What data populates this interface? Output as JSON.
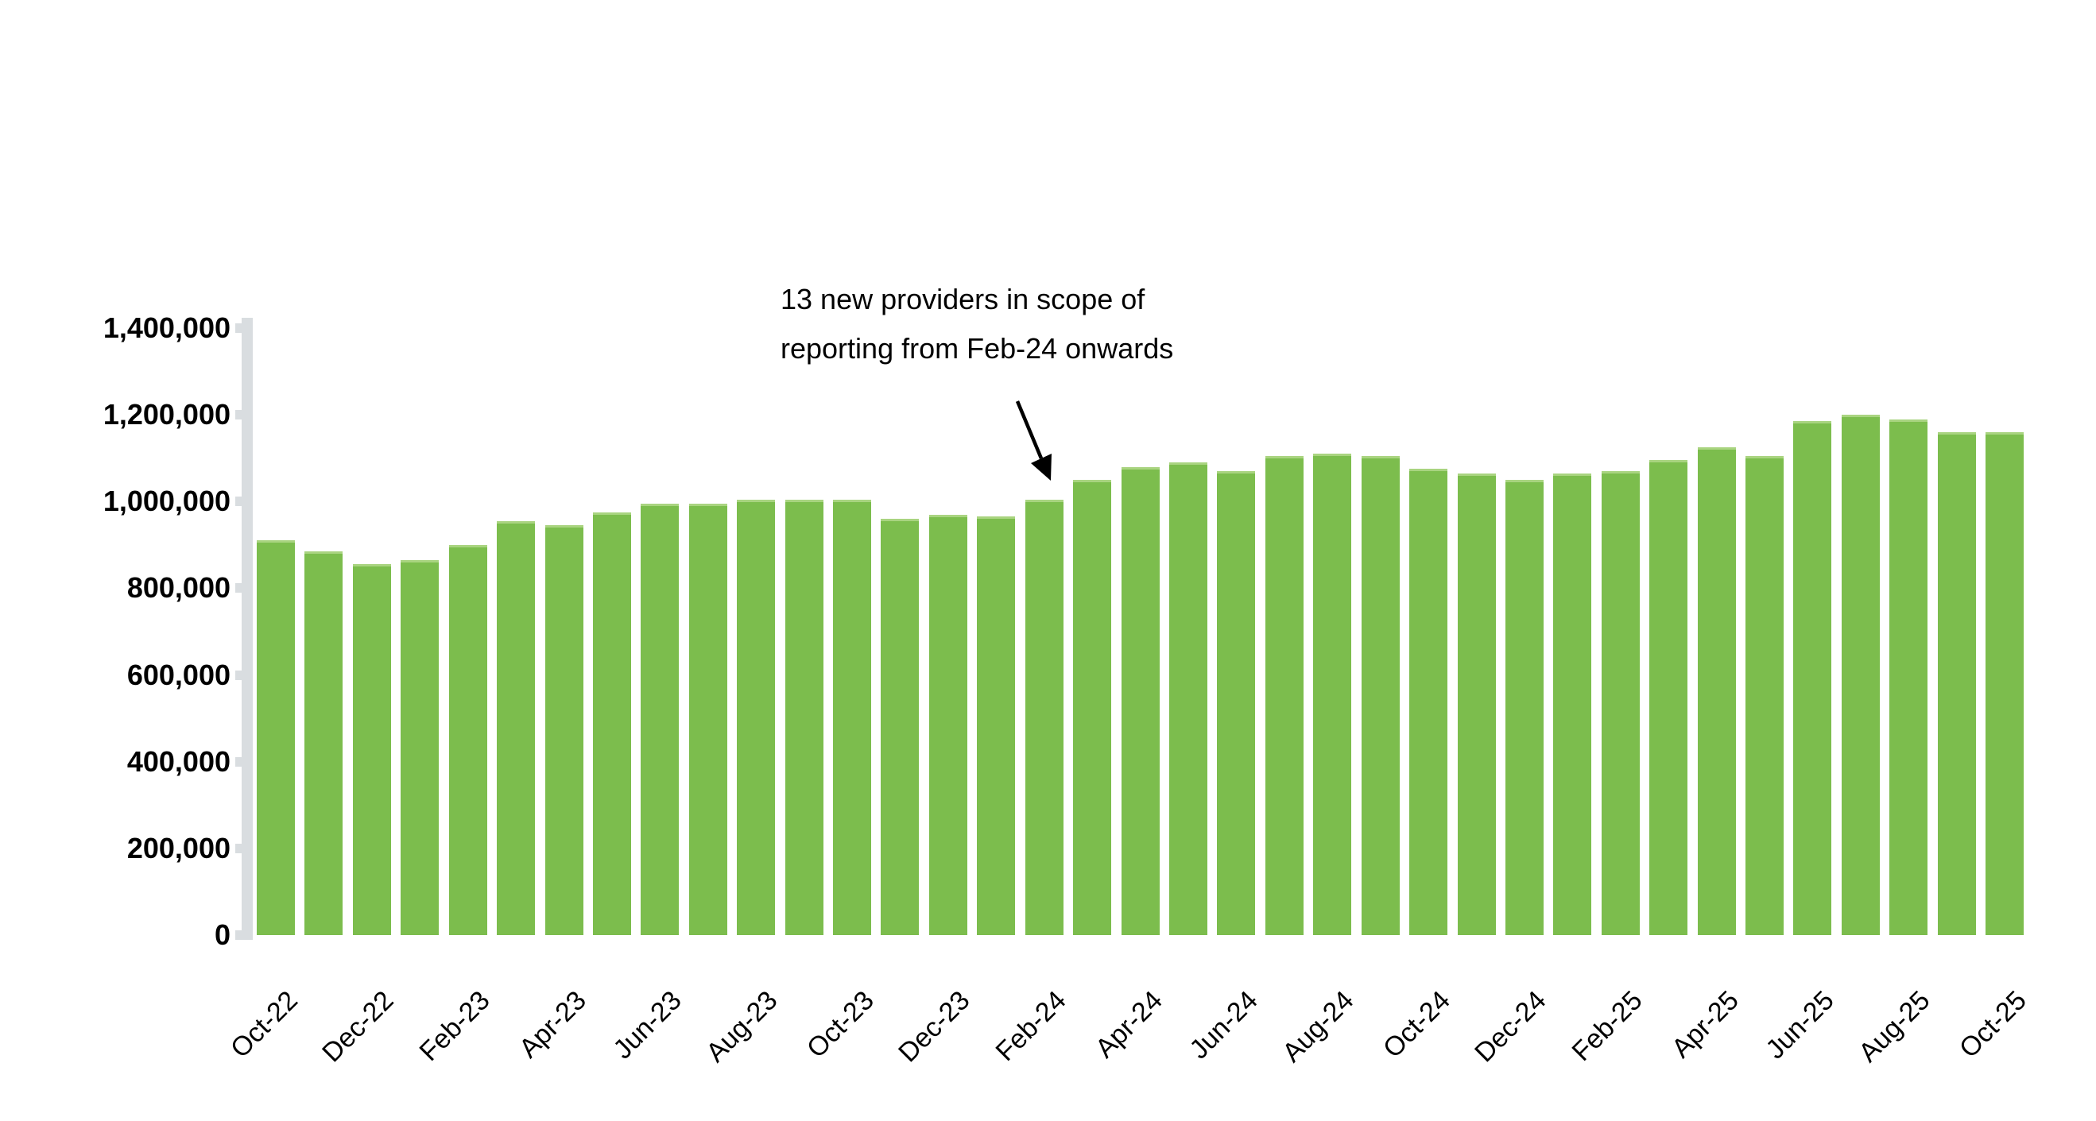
{
  "chart_data": {
    "type": "bar",
    "title": "",
    "categories": [
      "Oct-22",
      "Nov-22",
      "Dec-22",
      "Jan-23",
      "Feb-23",
      "Mar-23",
      "Apr-23",
      "May-23",
      "Jun-23",
      "Jul-23",
      "Aug-23",
      "Sep-23",
      "Oct-23",
      "Nov-23",
      "Dec-23",
      "Jan-24",
      "Feb-24",
      "Mar-24",
      "Apr-24",
      "May-24",
      "Jun-24",
      "Jul-24",
      "Aug-24",
      "Sep-24",
      "Oct-24",
      "Nov-24",
      "Dec-24",
      "Jan-25",
      "Feb-25",
      "Mar-25",
      "Apr-25",
      "May-25",
      "Jun-25",
      "Jul-25",
      "Aug-25",
      "Sep-25",
      "Oct-25"
    ],
    "values": [
      910000,
      885000,
      855000,
      865000,
      900000,
      955000,
      945000,
      975000,
      995000,
      995000,
      1005000,
      1005000,
      1005000,
      960000,
      970000,
      965000,
      1005000,
      1050000,
      1080000,
      1090000,
      1070000,
      1105000,
      1110000,
      1105000,
      1075000,
      1065000,
      1050000,
      1065000,
      1070000,
      1095000,
      1125000,
      1105000,
      1185000,
      1200000,
      1190000,
      1160000,
      1160000
    ],
    "x_tick_labels": [
      "Oct-22",
      "Dec-22",
      "Feb-23",
      "Apr-23",
      "Jun-23",
      "Aug-23",
      "Oct-23",
      "Dec-23",
      "Feb-24",
      "Apr-24",
      "Jun-24",
      "Aug-24",
      "Oct-24",
      "Dec-24",
      "Feb-25",
      "Apr-25",
      "Jun-25",
      "Aug-25",
      "Oct-25"
    ],
    "ylim": [
      0,
      1400000
    ],
    "ytick_interval": 200000,
    "ytick_labels": [
      "0",
      "200,000",
      "400,000",
      "600,000",
      "800,000",
      "1,000,000",
      "1,200,000",
      "1,400,000"
    ],
    "xlabel": "",
    "ylabel": "",
    "grid": "off",
    "legend": "none",
    "bar_color": "#7CBD4D",
    "bar_edge_color": "#A9D480",
    "axis_color": "#D9DDE0",
    "annotation": {
      "line1": "13 new providers in scope of",
      "line2": "reporting from Feb-24 onwards",
      "arrow_target": "Feb-24"
    }
  }
}
